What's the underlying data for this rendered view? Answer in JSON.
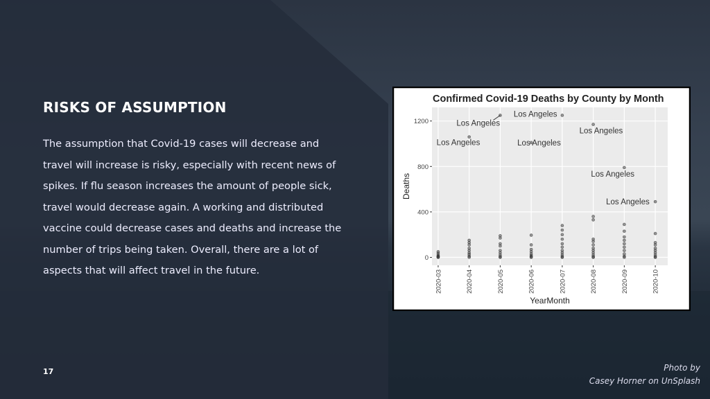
{
  "slide": {
    "title": "RISKS OF ASSUMPTION",
    "body": "The assumption that Covid-19 cases will decrease and travel will increase is risky, especially with recent news of spikes. If flu season increases the amount of people sick, travel would decrease again. A working and distributed vaccine could decrease cases and deaths and increase the number of trips being taken. Overall, there are a lot of aspects that will affect travel in the future.",
    "page_number": "17",
    "credit": [
      "Photo by",
      "Casey Horner on UnSplash"
    ]
  },
  "chart_data": {
    "type": "scatter",
    "title": "Confirmed Covid-19 Deaths by County by Month",
    "x_label": "YearMonth",
    "y_label": "Deaths",
    "categories": [
      "2020-03",
      "2020-04",
      "2020-05",
      "2020-06",
      "2020-07",
      "2020-08",
      "2020-09",
      "2020-10"
    ],
    "ylim": [
      -70,
      1320
    ],
    "yticks": [
      0,
      400,
      800,
      1200
    ],
    "grid": true,
    "color": "#444444",
    "points": {
      "x": [
        "2020-03",
        "2020-03",
        "2020-03",
        "2020-03",
        "2020-03",
        "2020-03",
        "2020-03",
        "2020-04",
        "2020-04",
        "2020-04",
        "2020-04",
        "2020-04",
        "2020-04",
        "2020-04",
        "2020-04",
        "2020-04",
        "2020-05",
        "2020-05",
        "2020-05",
        "2020-05",
        "2020-05",
        "2020-05",
        "2020-05",
        "2020-05",
        "2020-05",
        "2020-06",
        "2020-06",
        "2020-06",
        "2020-06",
        "2020-06",
        "2020-06",
        "2020-06",
        "2020-06",
        "2020-07",
        "2020-07",
        "2020-07",
        "2020-07",
        "2020-07",
        "2020-07",
        "2020-07",
        "2020-07",
        "2020-07",
        "2020-07",
        "2020-07",
        "2020-08",
        "2020-08",
        "2020-08",
        "2020-08",
        "2020-08",
        "2020-08",
        "2020-08",
        "2020-08",
        "2020-08",
        "2020-08",
        "2020-08",
        "2020-09",
        "2020-09",
        "2020-09",
        "2020-09",
        "2020-09",
        "2020-09",
        "2020-09",
        "2020-09",
        "2020-09",
        "2020-09",
        "2020-10",
        "2020-10",
        "2020-10",
        "2020-10",
        "2020-10",
        "2020-10",
        "2020-10",
        "2020-10",
        "2020-10"
      ],
      "values": [
        50,
        35,
        20,
        10,
        5,
        2,
        0,
        150,
        130,
        110,
        80,
        60,
        40,
        25,
        10,
        0,
        190,
        170,
        120,
        100,
        60,
        40,
        20,
        5,
        0,
        195,
        110,
        70,
        50,
        30,
        15,
        5,
        0,
        280,
        240,
        200,
        160,
        120,
        90,
        60,
        40,
        20,
        5,
        0,
        360,
        330,
        160,
        140,
        110,
        80,
        60,
        40,
        20,
        5,
        0,
        290,
        230,
        180,
        150,
        120,
        90,
        60,
        30,
        10,
        0,
        210,
        130,
        110,
        80,
        60,
        40,
        20,
        5,
        0
      ]
    },
    "annotations": [
      {
        "label": "Los Angeles",
        "x": "2020-04",
        "y": 1060
      },
      {
        "label": "Los Angeles",
        "x": "2020-05",
        "y": 1250
      },
      {
        "label": "Los Angeles",
        "x": "2020-06",
        "y": 1010
      },
      {
        "label": "Los Angeles",
        "x": "2020-07",
        "y": 1250
      },
      {
        "label": "Los Angeles",
        "x": "2020-08",
        "y": 1170
      },
      {
        "label": "Los Angeles",
        "x": "2020-09",
        "y": 790
      },
      {
        "label": "Los Angeles",
        "x": "2020-10",
        "y": 490
      }
    ]
  }
}
